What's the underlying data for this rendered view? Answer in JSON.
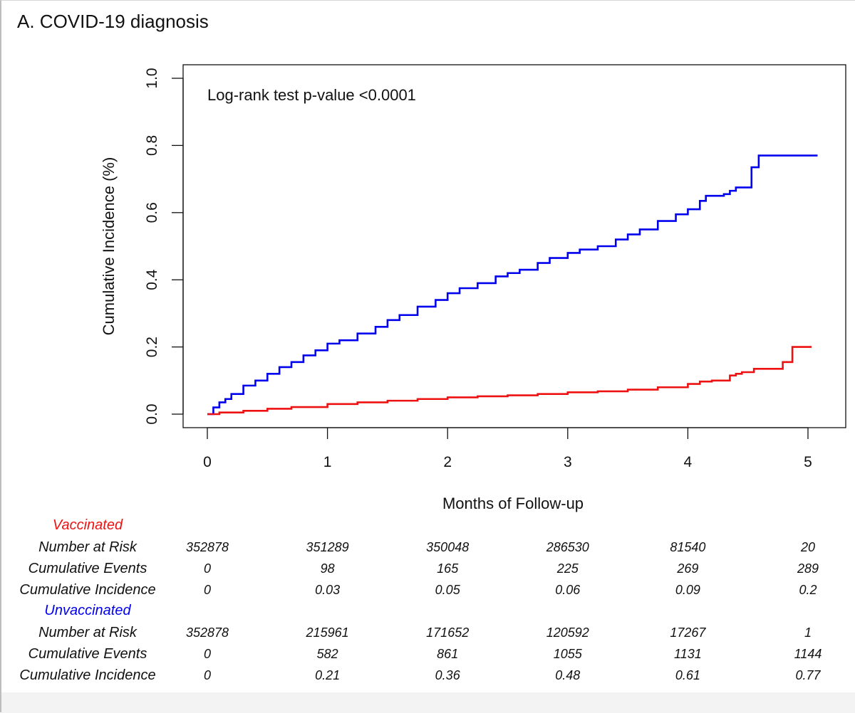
{
  "panel_title": "A.  COVID-19 diagnosis",
  "chart_data": {
    "type": "line",
    "step": true,
    "xlabel": "Months of Follow-up",
    "ylabel": "Cumulative Incidence (%)",
    "xlim": [
      0,
      5.1
    ],
    "ylim": [
      0,
      1.0
    ],
    "xticks": [
      0,
      1,
      2,
      3,
      4,
      5
    ],
    "yticks": [
      0.0,
      0.2,
      0.4,
      0.6,
      0.8,
      1.0
    ],
    "ytick_labels": [
      "0.0",
      "0.2",
      "0.4",
      "0.6",
      "0.8",
      "1.0"
    ],
    "grid": false,
    "annotation": "Log-rank test p-value <0.0001",
    "series": [
      {
        "name": "Unvaccinated",
        "color": "#0000ee",
        "points": [
          [
            0,
            0
          ],
          [
            0.05,
            0.02
          ],
          [
            0.1,
            0.035
          ],
          [
            0.15,
            0.045
          ],
          [
            0.2,
            0.06
          ],
          [
            0.3,
            0.085
          ],
          [
            0.4,
            0.1
          ],
          [
            0.5,
            0.12
          ],
          [
            0.6,
            0.14
          ],
          [
            0.7,
            0.155
          ],
          [
            0.8,
            0.175
          ],
          [
            0.9,
            0.19
          ],
          [
            1.0,
            0.21
          ],
          [
            1.1,
            0.22
          ],
          [
            1.25,
            0.24
          ],
          [
            1.4,
            0.26
          ],
          [
            1.5,
            0.28
          ],
          [
            1.6,
            0.295
          ],
          [
            1.75,
            0.32
          ],
          [
            1.9,
            0.34
          ],
          [
            2.0,
            0.36
          ],
          [
            2.1,
            0.375
          ],
          [
            2.25,
            0.39
          ],
          [
            2.4,
            0.41
          ],
          [
            2.5,
            0.42
          ],
          [
            2.6,
            0.43
          ],
          [
            2.75,
            0.45
          ],
          [
            2.85,
            0.465
          ],
          [
            3.0,
            0.48
          ],
          [
            3.1,
            0.49
          ],
          [
            3.25,
            0.5
          ],
          [
            3.4,
            0.52
          ],
          [
            3.5,
            0.535
          ],
          [
            3.6,
            0.55
          ],
          [
            3.75,
            0.575
          ],
          [
            3.9,
            0.595
          ],
          [
            4.0,
            0.61
          ],
          [
            4.1,
            0.635
          ],
          [
            4.15,
            0.65
          ],
          [
            4.3,
            0.655
          ],
          [
            4.35,
            0.665
          ],
          [
            4.4,
            0.675
          ],
          [
            4.52,
            0.675
          ],
          [
            4.53,
            0.735
          ],
          [
            4.58,
            0.735
          ],
          [
            4.59,
            0.77
          ],
          [
            5.08,
            0.77
          ]
        ]
      },
      {
        "name": "Vaccinated",
        "color": "#ee1111",
        "points": [
          [
            0,
            0
          ],
          [
            0.1,
            0.005
          ],
          [
            0.3,
            0.01
          ],
          [
            0.5,
            0.016
          ],
          [
            0.7,
            0.021
          ],
          [
            1.0,
            0.03
          ],
          [
            1.25,
            0.035
          ],
          [
            1.5,
            0.04
          ],
          [
            1.75,
            0.045
          ],
          [
            2.0,
            0.05
          ],
          [
            2.25,
            0.053
          ],
          [
            2.5,
            0.056
          ],
          [
            2.75,
            0.06
          ],
          [
            3.0,
            0.065
          ],
          [
            3.25,
            0.068
          ],
          [
            3.5,
            0.073
          ],
          [
            3.75,
            0.08
          ],
          [
            4.0,
            0.09
          ],
          [
            4.1,
            0.097
          ],
          [
            4.2,
            0.1
          ],
          [
            4.32,
            0.1
          ],
          [
            4.35,
            0.115
          ],
          [
            4.4,
            0.12
          ],
          [
            4.45,
            0.125
          ],
          [
            4.55,
            0.135
          ],
          [
            4.78,
            0.135
          ],
          [
            4.79,
            0.155
          ],
          [
            4.86,
            0.155
          ],
          [
            4.87,
            0.2
          ],
          [
            5.03,
            0.2
          ]
        ]
      }
    ]
  },
  "risk_table": {
    "groups": [
      {
        "name": "Vaccinated",
        "color": "#ee1111",
        "rows": [
          {
            "label": "Number at Risk",
            "values": [
              "352878",
              "351289",
              "350048",
              "286530",
              "81540",
              "20"
            ]
          },
          {
            "label": "Cumulative Events",
            "values": [
              "0",
              "98",
              "165",
              "225",
              "269",
              "289"
            ]
          },
          {
            "label": "Cumulative Incidence",
            "values": [
              "0",
              "0.03",
              "0.05",
              "0.06",
              "0.09",
              "0.2"
            ]
          }
        ]
      },
      {
        "name": "Unvaccinated",
        "color": "#0000ee",
        "rows": [
          {
            "label": "Number at Risk",
            "values": [
              "352878",
              "215961",
              "171652",
              "120592",
              "17267",
              "1"
            ]
          },
          {
            "label": "Cumulative Events",
            "values": [
              "0",
              "582",
              "861",
              "1055",
              "1131",
              "1144"
            ]
          },
          {
            "label": "Cumulative Incidence",
            "values": [
              "0",
              "0.21",
              "0.36",
              "0.48",
              "0.61",
              "0.77"
            ]
          }
        ]
      }
    ]
  }
}
